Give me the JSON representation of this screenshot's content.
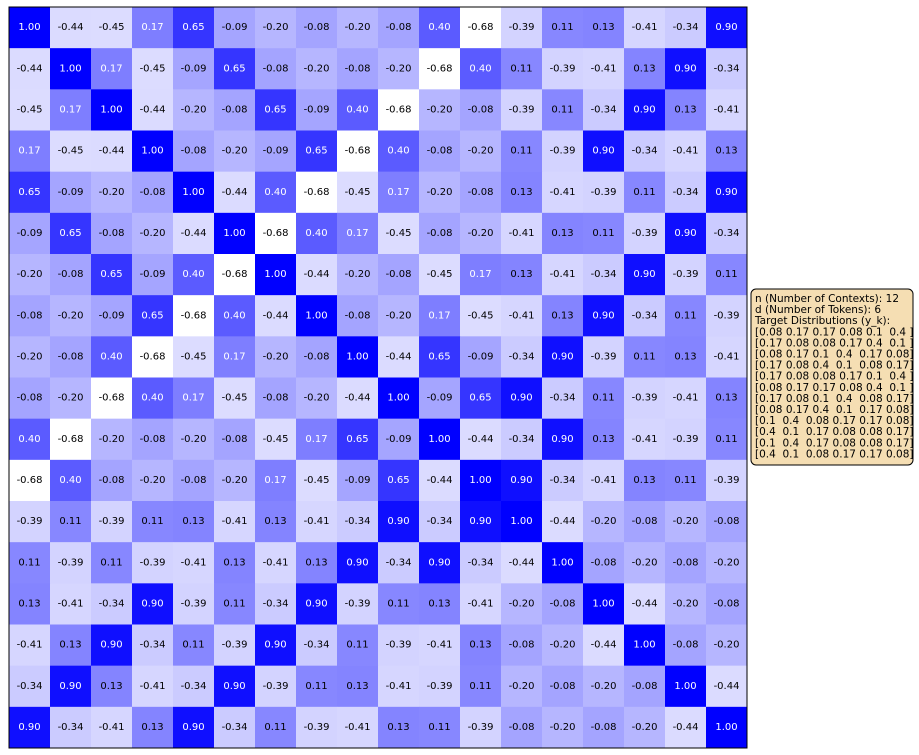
{
  "chart_data": {
    "type": "heatmap",
    "low_color": "#ffffff",
    "high_color": "#0000ff",
    "values": [
      [
        1,
        -0.44,
        -0.45,
        0.17,
        0.65,
        -0.09,
        -0.2,
        -0.08,
        -0.2,
        -0.08,
        0.4,
        -0.68,
        -0.39,
        0.11,
        0.13,
        -0.41,
        -0.34,
        0.9
      ],
      [
        -0.44,
        1,
        0.17,
        -0.45,
        -0.09,
        0.65,
        -0.08,
        -0.2,
        -0.08,
        -0.2,
        -0.68,
        0.4,
        0.11,
        -0.39,
        -0.41,
        0.13,
        0.9,
        -0.34
      ],
      [
        -0.45,
        0.17,
        1,
        -0.44,
        -0.2,
        -0.08,
        0.65,
        -0.09,
        0.4,
        -0.68,
        -0.2,
        -0.08,
        -0.39,
        0.11,
        -0.34,
        0.9,
        0.13,
        -0.41
      ],
      [
        0.17,
        -0.45,
        -0.44,
        1,
        -0.08,
        -0.2,
        -0.09,
        0.65,
        -0.68,
        0.4,
        -0.08,
        -0.2,
        0.11,
        -0.39,
        0.9,
        -0.34,
        -0.41,
        0.13
      ],
      [
        0.65,
        -0.09,
        -0.2,
        -0.08,
        1,
        -0.44,
        0.4,
        -0.68,
        -0.45,
        0.17,
        -0.2,
        -0.08,
        0.13,
        -0.41,
        -0.39,
        0.11,
        -0.34,
        0.9
      ],
      [
        -0.09,
        0.65,
        -0.08,
        -0.2,
        -0.44,
        1,
        -0.68,
        0.4,
        0.17,
        -0.45,
        -0.08,
        -0.2,
        -0.41,
        0.13,
        0.11,
        -0.39,
        0.9,
        -0.34
      ],
      [
        -0.2,
        -0.08,
        0.65,
        -0.09,
        0.4,
        -0.68,
        1,
        -0.44,
        -0.2,
        -0.08,
        -0.45,
        0.17,
        0.13,
        -0.41,
        -0.34,
        0.9,
        -0.39,
        0.11
      ],
      [
        -0.08,
        -0.2,
        -0.09,
        0.65,
        -0.68,
        0.4,
        -0.44,
        1,
        -0.08,
        -0.2,
        0.17,
        -0.45,
        -0.41,
        0.13,
        0.9,
        -0.34,
        0.11,
        -0.39
      ],
      [
        -0.2,
        -0.08,
        0.4,
        -0.68,
        -0.45,
        0.17,
        -0.2,
        -0.08,
        1,
        -0.44,
        0.65,
        -0.09,
        -0.34,
        0.9,
        -0.39,
        0.11,
        0.13,
        -0.41
      ],
      [
        -0.08,
        -0.2,
        -0.68,
        0.4,
        0.17,
        -0.45,
        -0.08,
        -0.2,
        -0.44,
        1,
        -0.09,
        0.65,
        0.9,
        -0.34,
        0.11,
        -0.39,
        -0.41,
        0.13
      ],
      [
        0.4,
        -0.68,
        -0.2,
        -0.08,
        -0.2,
        -0.08,
        -0.45,
        0.17,
        0.65,
        -0.09,
        1,
        -0.44,
        -0.34,
        0.9,
        0.13,
        -0.41,
        -0.39,
        0.11
      ],
      [
        -0.68,
        0.4,
        -0.08,
        -0.2,
        -0.08,
        -0.2,
        0.17,
        -0.45,
        -0.09,
        0.65,
        -0.44,
        1,
        0.9,
        -0.34,
        -0.41,
        0.13,
        0.11,
        -0.39
      ],
      [
        -0.39,
        0.11,
        -0.39,
        0.11,
        0.13,
        -0.41,
        0.13,
        -0.41,
        -0.34,
        0.9,
        -0.34,
        0.9,
        1,
        -0.44,
        -0.2,
        -0.08,
        -0.2,
        -0.08
      ],
      [
        0.11,
        -0.39,
        0.11,
        -0.39,
        -0.41,
        0.13,
        -0.41,
        0.13,
        0.9,
        -0.34,
        0.9,
        -0.34,
        -0.44,
        1,
        -0.08,
        -0.2,
        -0.08,
        -0.2
      ],
      [
        0.13,
        -0.41,
        -0.34,
        0.9,
        -0.39,
        0.11,
        -0.34,
        0.9,
        -0.39,
        0.11,
        0.13,
        -0.41,
        -0.2,
        -0.08,
        1,
        -0.44,
        -0.2,
        -0.08
      ],
      [
        -0.41,
        0.13,
        0.9,
        -0.34,
        0.11,
        -0.39,
        0.9,
        -0.34,
        0.11,
        -0.39,
        -0.41,
        0.13,
        -0.08,
        -0.2,
        -0.44,
        1,
        -0.08,
        -0.2
      ],
      [
        -0.34,
        0.9,
        0.13,
        -0.41,
        -0.34,
        0.9,
        -0.39,
        0.11,
        0.13,
        -0.41,
        -0.39,
        0.11,
        -0.2,
        -0.08,
        -0.2,
        -0.08,
        1,
        -0.44
      ],
      [
        0.9,
        -0.34,
        -0.41,
        0.13,
        0.9,
        -0.34,
        0.11,
        -0.39,
        -0.41,
        0.13,
        0.11,
        -0.39,
        -0.08,
        -0.2,
        -0.08,
        -0.2,
        -0.44,
        1
      ]
    ],
    "value_labels": [
      [
        "1.00",
        "-0.44",
        "-0.45",
        "0.17",
        "0.65",
        "-0.09",
        "-0.20",
        "-0.08",
        "-0.20",
        "-0.08",
        "0.40",
        "-0.68",
        "-0.39",
        "0.11",
        "0.13",
        "-0.41",
        "-0.34",
        "0.90"
      ],
      [
        "-0.44",
        "1.00",
        "0.17",
        "-0.45",
        "-0.09",
        "0.65",
        "-0.08",
        "-0.20",
        "-0.08",
        "-0.20",
        "-0.68",
        "0.40",
        "0.11",
        "-0.39",
        "-0.41",
        "0.13",
        "0.90",
        "-0.34"
      ],
      [
        "-0.45",
        "0.17",
        "1.00",
        "-0.44",
        "-0.20",
        "-0.08",
        "0.65",
        "-0.09",
        "0.40",
        "-0.68",
        "-0.20",
        "-0.08",
        "-0.39",
        "0.11",
        "-0.34",
        "0.90",
        "0.13",
        "-0.41"
      ],
      [
        "0.17",
        "-0.45",
        "-0.44",
        "1.00",
        "-0.08",
        "-0.20",
        "-0.09",
        "0.65",
        "-0.68",
        "0.40",
        "-0.08",
        "-0.20",
        "0.11",
        "-0.39",
        "0.90",
        "-0.34",
        "-0.41",
        "0.13"
      ],
      [
        "0.65",
        "-0.09",
        "-0.20",
        "-0.08",
        "1.00",
        "-0.44",
        "0.40",
        "-0.68",
        "-0.45",
        "0.17",
        "-0.20",
        "-0.08",
        "0.13",
        "-0.41",
        "-0.39",
        "0.11",
        "-0.34",
        "0.90"
      ],
      [
        "-0.09",
        "0.65",
        "-0.08",
        "-0.20",
        "-0.44",
        "1.00",
        "-0.68",
        "0.40",
        "0.17",
        "-0.45",
        "-0.08",
        "-0.20",
        "-0.41",
        "0.13",
        "0.11",
        "-0.39",
        "0.90",
        "-0.34"
      ],
      [
        "-0.20",
        "-0.08",
        "0.65",
        "-0.09",
        "0.40",
        "-0.68",
        "1.00",
        "-0.44",
        "-0.20",
        "-0.08",
        "-0.45",
        "0.17",
        "0.13",
        "-0.41",
        "-0.34",
        "0.90",
        "-0.39",
        "0.11"
      ],
      [
        "-0.08",
        "-0.20",
        "-0.09",
        "0.65",
        "-0.68",
        "0.40",
        "-0.44",
        "1.00",
        "-0.08",
        "-0.20",
        "0.17",
        "-0.45",
        "-0.41",
        "0.13",
        "0.90",
        "-0.34",
        "0.11",
        "-0.39"
      ],
      [
        "-0.20",
        "-0.08",
        "0.40",
        "-0.68",
        "-0.45",
        "0.17",
        "-0.20",
        "-0.08",
        "1.00",
        "-0.44",
        "0.65",
        "-0.09",
        "-0.34",
        "0.90",
        "-0.39",
        "0.11",
        "0.13",
        "-0.41"
      ],
      [
        "-0.08",
        "-0.20",
        "-0.68",
        "0.40",
        "0.17",
        "-0.45",
        "-0.08",
        "-0.20",
        "-0.44",
        "1.00",
        "-0.09",
        "0.65",
        "0.90",
        "-0.34",
        "0.11",
        "-0.39",
        "-0.41",
        "0.13"
      ],
      [
        "0.40",
        "-0.68",
        "-0.20",
        "-0.08",
        "-0.20",
        "-0.08",
        "-0.45",
        "0.17",
        "0.65",
        "-0.09",
        "1.00",
        "-0.44",
        "-0.34",
        "0.90",
        "0.13",
        "-0.41",
        "-0.39",
        "0.11"
      ],
      [
        "-0.68",
        "0.40",
        "-0.08",
        "-0.20",
        "-0.08",
        "-0.20",
        "0.17",
        "-0.45",
        "-0.09",
        "0.65",
        "-0.44",
        "1.00",
        "0.90",
        "-0.34",
        "-0.41",
        "0.13",
        "0.11",
        "-0.39"
      ],
      [
        "-0.39",
        "0.11",
        "-0.39",
        "0.11",
        "0.13",
        "-0.41",
        "0.13",
        "-0.41",
        "-0.34",
        "0.90",
        "-0.34",
        "0.90",
        "1.00",
        "-0.44",
        "-0.20",
        "-0.08",
        "-0.20",
        "-0.08"
      ],
      [
        "0.11",
        "-0.39",
        "0.11",
        "-0.39",
        "-0.41",
        "0.13",
        "-0.41",
        "0.13",
        "0.90",
        "-0.34",
        "0.90",
        "-0.34",
        "-0.44",
        "1.00",
        "-0.08",
        "-0.20",
        "-0.08",
        "-0.20"
      ],
      [
        "0.13",
        "-0.41",
        "-0.34",
        "0.90",
        "-0.39",
        "0.11",
        "-0.34",
        "0.90",
        "-0.39",
        "0.11",
        "0.13",
        "-0.41",
        "-0.20",
        "-0.08",
        "1.00",
        "-0.44",
        "-0.20",
        "-0.08"
      ],
      [
        "-0.41",
        "0.13",
        "0.90",
        "-0.34",
        "0.11",
        "-0.39",
        "0.90",
        "-0.34",
        "0.11",
        "-0.39",
        "-0.41",
        "0.13",
        "-0.08",
        "-0.20",
        "-0.44",
        "1.00",
        "-0.08",
        "-0.20"
      ],
      [
        "-0.34",
        "0.90",
        "0.13",
        "-0.41",
        "-0.34",
        "0.90",
        "-0.39",
        "0.11",
        "0.13",
        "-0.41",
        "-0.39",
        "0.11",
        "-0.20",
        "-0.08",
        "-0.20",
        "-0.08",
        "1.00",
        "-0.44"
      ],
      [
        "0.90",
        "-0.34",
        "-0.41",
        "0.13",
        "0.90",
        "-0.34",
        "0.11",
        "-0.39",
        "-0.41",
        "0.13",
        "0.11",
        "-0.39",
        "-0.08",
        "-0.20",
        "-0.08",
        "-0.20",
        "-0.44",
        "1.00"
      ]
    ],
    "annotation": [
      "n (Number of Contexts): 12",
      "d (Number of Tokens): 6",
      "Target Distributions (y_k):",
      "[0.08 0.17 0.17 0.08 0.1  0.4 ]",
      "[0.17 0.08 0.08 0.17 0.4  0.1 ]",
      "[0.08 0.17 0.1  0.4  0.17 0.08]",
      "[0.17 0.08 0.4  0.1  0.08 0.17]",
      "[0.17 0.08 0.08 0.17 0.1  0.4 ]",
      "[0.08 0.17 0.17 0.08 0.4  0.1 ]",
      "[0.17 0.08 0.1  0.4  0.08 0.17]",
      "[0.08 0.17 0.4  0.1  0.17 0.08]",
      "[0.1  0.4  0.08 0.17 0.17 0.08]",
      "[0.4  0.1  0.17 0.08 0.08 0.17]",
      "[0.1  0.4  0.17 0.08 0.08 0.17]",
      "[0.4  0.1  0.08 0.17 0.17 0.08]"
    ]
  }
}
